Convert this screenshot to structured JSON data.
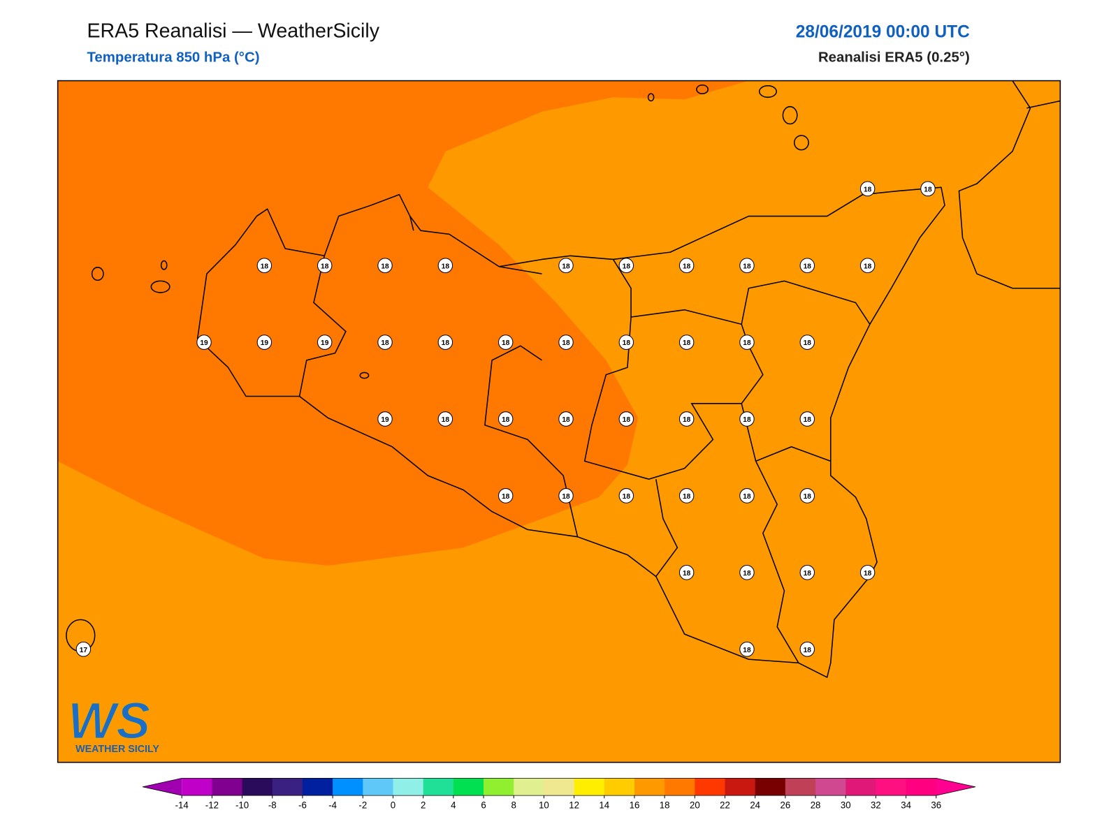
{
  "header": {
    "title": "ERA5 Reanalisi — WeatherSicily",
    "subtitle": "Temperatura 850 hPa (°C)",
    "date": "28/06/2019 00:00 UTC",
    "source": "Reanalisi ERA5 (0.25°)"
  },
  "logo": {
    "mark": "WS",
    "text": "WEATHER SICILY"
  },
  "stations": [
    [
      null,
      null,
      null,
      null,
      null,
      null,
      null,
      null,
      null,
      null,
      null,
      null,
      null,
      18,
      18
    ],
    [
      null,
      null,
      null,
      18,
      18,
      18,
      18,
      null,
      18,
      18,
      18,
      18,
      18,
      18,
      null
    ],
    [
      null,
      null,
      19,
      19,
      19,
      18,
      18,
      18,
      18,
      18,
      18,
      18,
      18,
      null,
      null
    ],
    [
      null,
      null,
      null,
      null,
      null,
      19,
      18,
      18,
      18,
      18,
      18,
      18,
      18,
      null,
      null
    ],
    [
      null,
      null,
      null,
      null,
      null,
      null,
      null,
      18,
      18,
      18,
      18,
      18,
      18,
      null,
      null
    ],
    [
      null,
      null,
      null,
      null,
      null,
      null,
      null,
      null,
      null,
      null,
      18,
      18,
      18,
      18,
      null
    ],
    [
      17,
      null,
      null,
      null,
      null,
      null,
      null,
      null,
      null,
      null,
      null,
      18,
      18,
      null,
      null
    ]
  ],
  "colorbar": {
    "ticks": [
      -14,
      -12,
      -10,
      -8,
      -6,
      -4,
      -2,
      0,
      2,
      4,
      6,
      8,
      10,
      12,
      14,
      16,
      18,
      20,
      22,
      24,
      26,
      28,
      30,
      32,
      34,
      36
    ],
    "colors": [
      "#c000c8",
      "#800090",
      "#2a0a5a",
      "#3a2080",
      "#0020a0",
      "#0090ff",
      "#60c8f8",
      "#90f0e8",
      "#20e098",
      "#00e050",
      "#90f030",
      "#e0f090",
      "#f0e890",
      "#ffee00",
      "#ffcc00",
      "#ff9900",
      "#ff7800",
      "#ff3800",
      "#c81810",
      "#780000",
      "#c04058",
      "#d04890",
      "#e01878",
      "#ff1080",
      "#ff0080"
    ],
    "under": "#a000b0",
    "over": "#ff0090"
  }
}
